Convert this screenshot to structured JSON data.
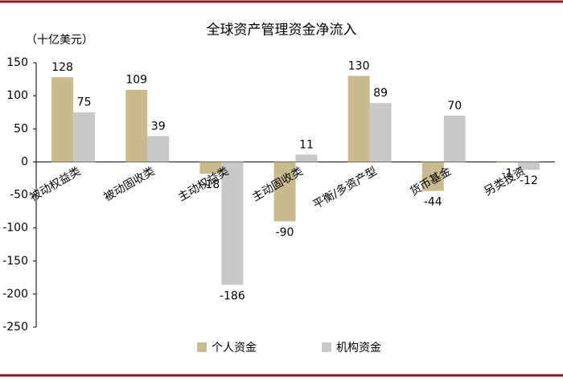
{
  "chart_data": {
    "type": "bar",
    "title": "全球资产管理资金净流入",
    "y_axis_label": "（十亿美元）",
    "categories": [
      "被动权益类",
      "被动固收类",
      "主动权益类",
      "主动固收类",
      "平衡/多资产型",
      "货币基金",
      "另类投资"
    ],
    "series": [
      {
        "name": "个人资金",
        "color": "#c9bb8e",
        "values": [
          128,
          109,
          -18,
          -90,
          130,
          -44,
          -1
        ]
      },
      {
        "name": "机构资金",
        "color": "#c8c8c8",
        "values": [
          75,
          39,
          -186,
          11,
          89,
          70,
          -12
        ]
      }
    ],
    "ylim": [
      -250,
      150
    ],
    "yticks": [
      -250,
      -200,
      -150,
      -100,
      -50,
      0,
      50,
      100,
      150
    ],
    "grid": false,
    "legend": "bottom"
  }
}
